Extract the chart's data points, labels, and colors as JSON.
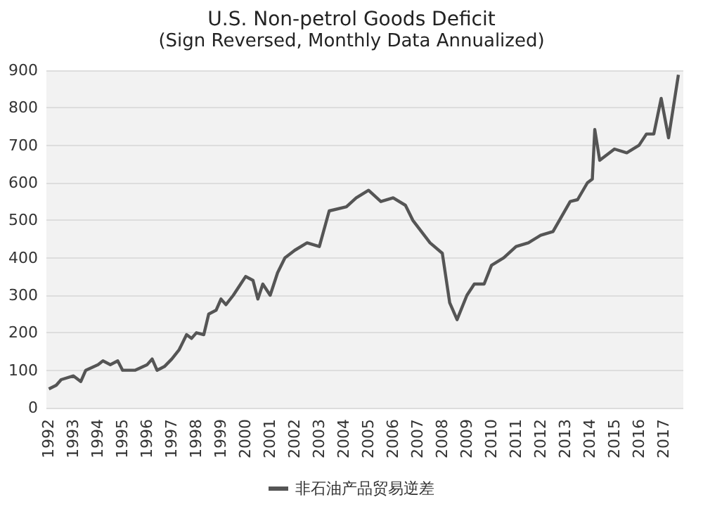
{
  "chart_data": {
    "type": "line",
    "title": "U.S. Non-petrol Goods Deficit",
    "subtitle": "(Sign Reversed, Monthly Data Annualized)",
    "x": [
      1992.0,
      1992.3,
      1992.5,
      1993.0,
      1993.3,
      1993.5,
      1994.0,
      1994.2,
      1994.5,
      1994.8,
      1995.0,
      1995.5,
      1996.0,
      1996.2,
      1996.4,
      1996.7,
      1997.0,
      1997.3,
      1997.6,
      1997.8,
      1998.0,
      1998.3,
      1998.5,
      1998.8,
      1999.0,
      1999.2,
      1999.5,
      1999.8,
      2000.0,
      2000.3,
      2000.5,
      2000.7,
      2001.0,
      2001.3,
      2001.6,
      2002.0,
      2002.5,
      2003.0,
      2003.4,
      2004.1,
      2004.5,
      2005.0,
      2005.5,
      2006.0,
      2006.5,
      2006.8,
      2007.5,
      2008.0,
      2008.3,
      2008.6,
      2009.0,
      2009.3,
      2009.7,
      2010.0,
      2010.5,
      2011.0,
      2011.5,
      2012.0,
      2012.5,
      2013.2,
      2013.5,
      2013.9,
      2014.1,
      2014.2,
      2014.4,
      2015.0,
      2015.5,
      2016.0,
      2016.3,
      2016.6,
      2016.9,
      2017.2,
      2017.6
    ],
    "series": [
      {
        "name": "非石油产品贸易逆差",
        "color": "#555555",
        "values": [
          50,
          60,
          75,
          85,
          70,
          100,
          115,
          125,
          115,
          125,
          100,
          100,
          115,
          130,
          100,
          110,
          130,
          155,
          195,
          185,
          200,
          195,
          250,
          260,
          290,
          275,
          300,
          330,
          350,
          340,
          290,
          330,
          300,
          360,
          400,
          420,
          440,
          430,
          525,
          536,
          560,
          580,
          550,
          560,
          540,
          500,
          440,
          412,
          280,
          235,
          300,
          330,
          330,
          380,
          400,
          430,
          440,
          460,
          470,
          550,
          555,
          600,
          610,
          742,
          660,
          690,
          680,
          700,
          730,
          730,
          825,
          720,
          888
        ]
      }
    ],
    "xlim": [
      1991.9,
      2017.8
    ],
    "xticks": [
      1992,
      1993,
      1994,
      1995,
      1996,
      1997,
      1998,
      1999,
      2000,
      2001,
      2002,
      2003,
      2004,
      2005,
      2006,
      2007,
      2008,
      2009,
      2010,
      2011,
      2012,
      2013,
      2014,
      2015,
      2016,
      2017
    ],
    "ylim": [
      0,
      900
    ],
    "yticks": [
      0,
      100,
      200,
      300,
      400,
      500,
      600,
      700,
      800,
      900
    ],
    "grid": "y",
    "legend": "bottom",
    "marker": "none",
    "line_style": "solid"
  }
}
